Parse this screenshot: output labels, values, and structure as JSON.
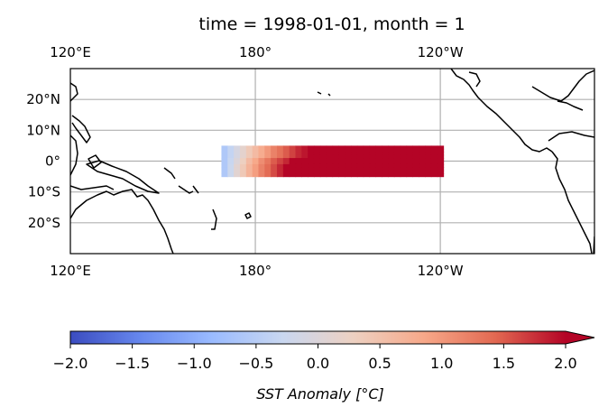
{
  "chart_data": {
    "type": "heatmap",
    "title": "time = 1998-01-01, month = 1",
    "projection": "PlateCarree",
    "extent": {
      "lon": [
        120,
        290
      ],
      "lat": [
        -30,
        30
      ]
    },
    "grid": true,
    "x_ticks": [
      {
        "lon": 120,
        "label": "120°E"
      },
      {
        "lon": 180,
        "label": "180°"
      },
      {
        "lon": 240,
        "label": "120°W"
      }
    ],
    "y_ticks": [
      {
        "lat": 20,
        "label": "20°N"
      },
      {
        "lat": 10,
        "label": "10°N"
      },
      {
        "lat": 0,
        "label": "0°"
      },
      {
        "lat": -10,
        "label": "10°S"
      },
      {
        "lat": -20,
        "label": "20°S"
      }
    ],
    "field": {
      "lon_range": [
        169,
        241
      ],
      "lat_range": [
        -5,
        5
      ],
      "cell_deg": 2,
      "profiles": [
        {
          "lat_band": [
            1,
            5
          ],
          "points": [
            [
              170,
              -0.6
            ],
            [
              174,
              -0.1
            ],
            [
              178,
              0.4
            ],
            [
              182,
              0.8
            ],
            [
              186,
              1.2
            ],
            [
              190,
              1.5
            ],
            [
              194,
              1.8
            ],
            [
              198,
              2.0
            ],
            [
              240,
              2.2
            ]
          ]
        },
        {
          "lat_band": [
            -1,
            1
          ],
          "points": [
            [
              170,
              -0.6
            ],
            [
              174,
              0.0
            ],
            [
              178,
              0.6
            ],
            [
              182,
              1.1
            ],
            [
              186,
              1.5
            ],
            [
              190,
              1.8
            ],
            [
              192,
              2.0
            ],
            [
              240,
              2.2
            ]
          ]
        },
        {
          "lat_band": [
            -5,
            -1
          ],
          "points": [
            [
              170,
              -0.6
            ],
            [
              174,
              0.1
            ],
            [
              178,
              0.7
            ],
            [
              182,
              1.2
            ],
            [
              186,
              1.6
            ],
            [
              190,
              2.0
            ],
            [
              240,
              2.2
            ]
          ]
        }
      ]
    },
    "colorbar": {
      "cmap": "coolwarm",
      "vmin": -2.0,
      "vmax": 2.0,
      "extend": "max",
      "tick_values": [
        -2.0,
        -1.5,
        -1.0,
        -0.5,
        0.0,
        0.5,
        1.0,
        1.5,
        2.0
      ],
      "tick_labels": [
        "−2.0",
        "−1.5",
        "−1.0",
        "−0.5",
        "0.0",
        "0.5",
        "1.0",
        "1.5",
        "2.0"
      ],
      "label": "SST Anomaly [°C]",
      "stops": [
        "#3b4cc0",
        "#6788ee",
        "#9abbff",
        "#c9d7f0",
        "#edd1c2",
        "#f7a889",
        "#e26952",
        "#b40426"
      ]
    },
    "coastline_color": "#000000",
    "grid_color": "#b0b0b0"
  }
}
